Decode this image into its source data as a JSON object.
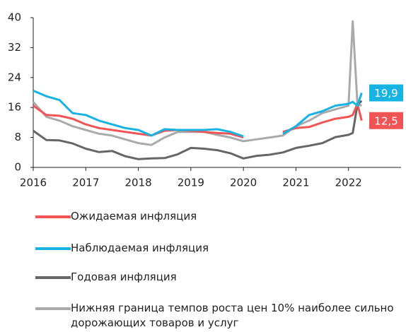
{
  "chart_data": {
    "type": "line",
    "x": [
      2016.0,
      2016.25,
      2016.5,
      2016.75,
      2017.0,
      2017.25,
      2017.5,
      2017.75,
      2018.0,
      2018.25,
      2018.5,
      2018.75,
      2019.0,
      2019.25,
      2019.5,
      2019.75,
      2020.0,
      2020.25,
      2020.5,
      2020.75,
      2021.0,
      2021.25,
      2021.5,
      2021.75,
      2022.0,
      2022.08,
      2022.17,
      2022.25
    ],
    "xlim": [
      2016,
      2023
    ],
    "xticks": [
      2016,
      2017,
      2018,
      2019,
      2020,
      2021,
      2022
    ],
    "ylim": [
      0,
      40
    ],
    "yticks": [
      0,
      8,
      16,
      24,
      32,
      40
    ],
    "series": [
      {
        "name": "Ожидаемая инфляция",
        "color": "#f05454",
        "values": [
          16.5,
          14.0,
          13.8,
          13.0,
          11.5,
          10.5,
          10.0,
          9.5,
          9.0,
          8.5,
          9.8,
          10.0,
          9.8,
          9.5,
          9.2,
          9.0,
          8.0,
          null,
          null,
          9.5,
          10.5,
          10.8,
          12.0,
          13.0,
          13.5,
          14.0,
          17.0,
          12.5
        ],
        "value_labels": [
          null,
          null,
          null,
          null,
          null,
          null,
          null,
          null,
          null,
          null,
          null,
          null,
          null,
          null,
          null,
          null,
          null,
          null,
          null,
          null,
          null,
          null,
          null,
          null,
          null,
          null,
          null,
          "12,5"
        ]
      },
      {
        "name": "Наблюдаемая инфляция",
        "color": "#17b3e3",
        "values": [
          20.5,
          19.0,
          18.0,
          14.5,
          14.0,
          12.5,
          11.5,
          10.5,
          10.0,
          8.5,
          10.2,
          10.0,
          10.0,
          10.0,
          10.2,
          9.5,
          8.3,
          null,
          null,
          9.0,
          11.0,
          14.0,
          15.0,
          16.5,
          17.0,
          17.5,
          16.5,
          19.9
        ],
        "value_labels": [
          null,
          null,
          null,
          null,
          null,
          null,
          null,
          null,
          null,
          null,
          null,
          null,
          null,
          null,
          null,
          null,
          null,
          null,
          null,
          null,
          null,
          null,
          null,
          null,
          null,
          null,
          null,
          "19,9"
        ]
      },
      {
        "name": "Годовая инфляция",
        "color": "#666666",
        "values": [
          9.8,
          7.3,
          7.2,
          6.4,
          5.0,
          4.1,
          4.4,
          3.0,
          2.2,
          2.4,
          2.5,
          3.5,
          5.2,
          5.0,
          4.6,
          3.8,
          2.4,
          3.1,
          3.4,
          4.0,
          5.2,
          5.8,
          6.5,
          8.1,
          8.7,
          9.2,
          16.7,
          17.8
        ]
      },
      {
        "name": "Нижняя граница темпов роста цен 10% наиболее сильно дорожающих товаров и услуг",
        "color": "#aaaaaa",
        "values": [
          17.5,
          13.5,
          12.5,
          11.0,
          10.0,
          9.0,
          8.5,
          7.5,
          6.5,
          6.0,
          8.0,
          9.5,
          9.5,
          9.5,
          8.7,
          8.0,
          7.0,
          7.5,
          8.0,
          8.5,
          11.0,
          12.5,
          14.5,
          15.5,
          16.5,
          39.0,
          17.0,
          16.5
        ]
      }
    ]
  }
}
